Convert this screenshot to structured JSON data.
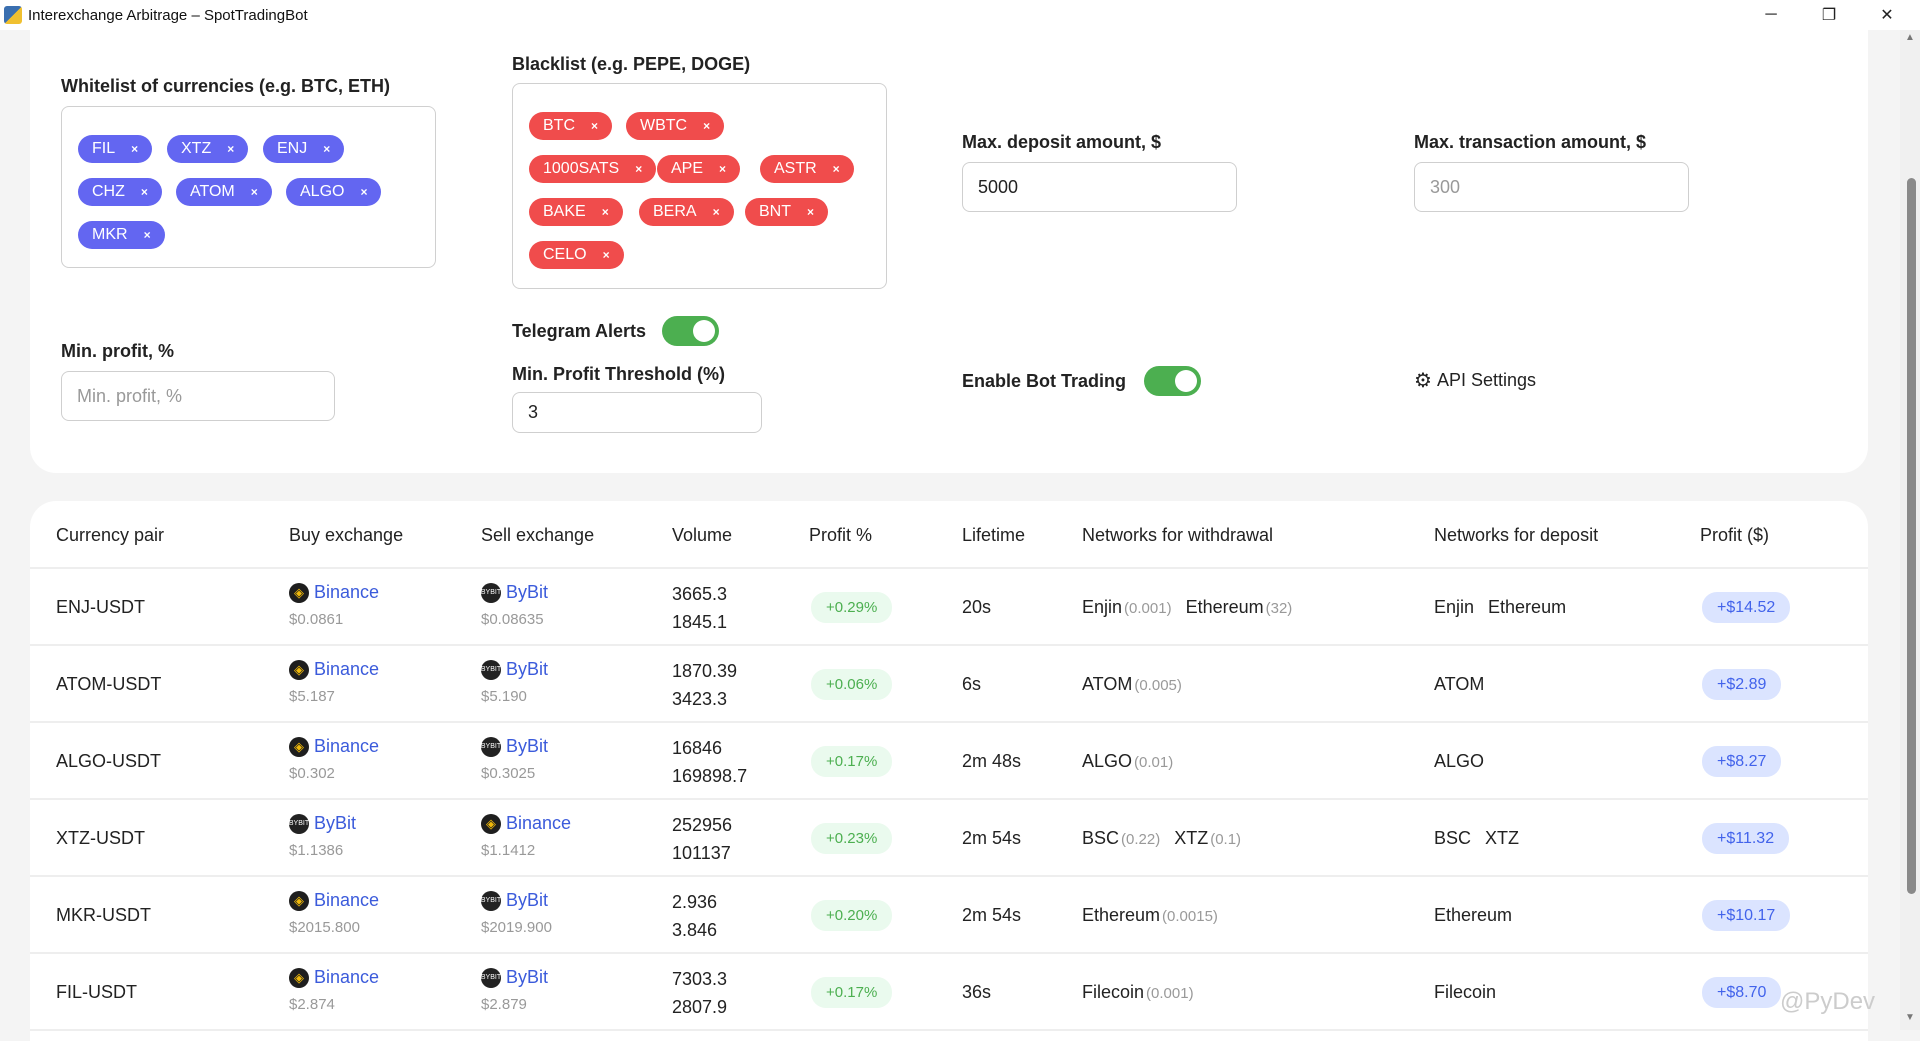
{
  "window": {
    "title": "Interexchange Arbitrage – SpotTradingBot",
    "minimize": "─",
    "maximize": "❐",
    "close": "✕"
  },
  "settings": {
    "whitelist_label": "Whitelist of currencies (e.g. BTC, ETH)",
    "whitelist": [
      "FIL",
      "XTZ",
      "ENJ",
      "CHZ",
      "ATOM",
      "ALGO",
      "MKR"
    ],
    "blacklist_label": "Blacklist (e.g. PEPE, DOGE)",
    "blacklist": [
      "BTC",
      "WBTC",
      "1000SATS",
      "APE",
      "ASTR",
      "BAKE",
      "BERA",
      "BNT",
      "CELO"
    ],
    "chip_remove": "×",
    "min_profit_label": "Min. profit, %",
    "min_profit_placeholder": "Min. profit, %",
    "telegram_label": "Telegram Alerts",
    "telegram_on": true,
    "threshold_label": "Min. Profit Threshold (%)",
    "threshold_value": "3",
    "max_deposit_label": "Max. deposit amount, $",
    "max_deposit_value": "5000",
    "max_tx_label": "Max. transaction amount, $",
    "max_tx_placeholder": "300",
    "bot_trading_label": "Enable Bot Trading",
    "bot_trading_on": true,
    "api_settings": "API Settings"
  },
  "table": {
    "headers": [
      "Currency pair",
      "Buy exchange",
      "Sell exchange",
      "Volume",
      "Profit %",
      "Lifetime",
      "Networks for withdrawal",
      "Networks for deposit",
      "Profit ($)"
    ],
    "rows": [
      {
        "pair": "ENJ-USDT",
        "buy": "Binance",
        "buy_price": "$0.0861",
        "sell": "ByBit",
        "sell_price": "$0.08635",
        "vol1": "3665.3",
        "vol2": "1845.1",
        "pct": "+0.29%",
        "life": "20s",
        "w": [
          {
            "n": "Enjin",
            "f": "(0.001)"
          },
          {
            "n": "Ethereum",
            "f": "(32)"
          }
        ],
        "d": [
          "Enjin",
          "Ethereum"
        ],
        "profit": "+$14.52"
      },
      {
        "pair": "ATOM-USDT",
        "buy": "Binance",
        "buy_price": "$5.187",
        "sell": "ByBit",
        "sell_price": "$5.190",
        "vol1": "1870.39",
        "vol2": "3423.3",
        "pct": "+0.06%",
        "life": "6s",
        "w": [
          {
            "n": "ATOM",
            "f": "(0.005)"
          }
        ],
        "d": [
          "ATOM"
        ],
        "profit": "+$2.89"
      },
      {
        "pair": "ALGO-USDT",
        "buy": "Binance",
        "buy_price": "$0.302",
        "sell": "ByBit",
        "sell_price": "$0.3025",
        "vol1": "16846",
        "vol2": "169898.7",
        "pct": "+0.17%",
        "life": "2m 48s",
        "w": [
          {
            "n": "ALGO",
            "f": "(0.01)"
          }
        ],
        "d": [
          "ALGO"
        ],
        "profit": "+$8.27"
      },
      {
        "pair": "XTZ-USDT",
        "buy": "ByBit",
        "buy_price": "$1.1386",
        "sell": "Binance",
        "sell_price": "$1.1412",
        "vol1": "252956",
        "vol2": "101137",
        "pct": "+0.23%",
        "life": "2m 54s",
        "w": [
          {
            "n": "BSC",
            "f": "(0.22)"
          },
          {
            "n": "XTZ",
            "f": "(0.1)"
          }
        ],
        "d": [
          "BSC",
          "XTZ"
        ],
        "profit": "+$11.32"
      },
      {
        "pair": "MKR-USDT",
        "buy": "Binance",
        "buy_price": "$2015.800",
        "sell": "ByBit",
        "sell_price": "$2019.900",
        "vol1": "2.936",
        "vol2": "3.846",
        "pct": "+0.20%",
        "life": "2m 54s",
        "w": [
          {
            "n": "Ethereum",
            "f": "(0.0015)"
          }
        ],
        "d": [
          "Ethereum"
        ],
        "profit": "+$10.17"
      },
      {
        "pair": "FIL-USDT",
        "buy": "Binance",
        "buy_price": "$2.874",
        "sell": "ByBit",
        "sell_price": "$2.879",
        "vol1": "7303.3",
        "vol2": "2807.9",
        "pct": "+0.17%",
        "life": "36s",
        "w": [
          {
            "n": "Filecoin",
            "f": "(0.001)"
          }
        ],
        "d": [
          "Filecoin"
        ],
        "profit": "+$8.70"
      }
    ]
  },
  "watermark": "@PyDev",
  "colors": {
    "whitelist": "#6366f1",
    "blacklist": "#f04c4c",
    "toggle": "#4caf50",
    "link": "#3b5bdb"
  }
}
